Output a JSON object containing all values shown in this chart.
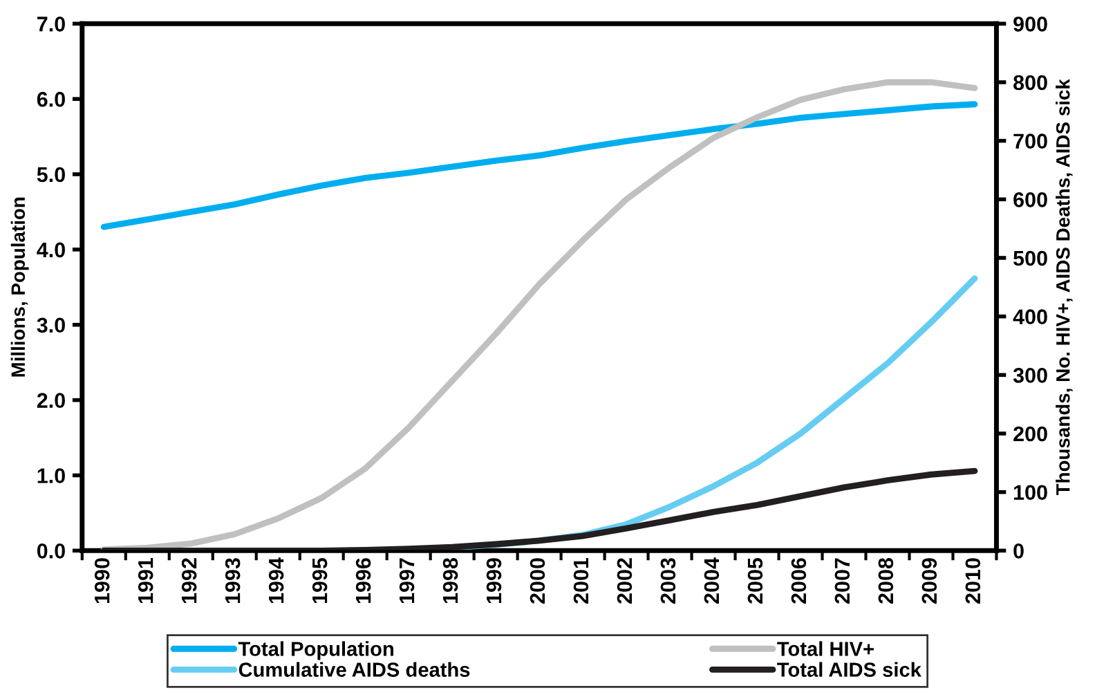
{
  "chart_data": {
    "type": "line",
    "ylabel": "Millions, Population",
    "y2label": "Thousands, No. HIV+, AIDS Deaths, AIDS sick",
    "categories": [
      "1990",
      "1991",
      "1992",
      "1993",
      "1994",
      "1995",
      "1996",
      "1997",
      "1998",
      "1999",
      "2000",
      "2001",
      "2002",
      "2003",
      "2004",
      "2005",
      "2006",
      "2007",
      "2008",
      "2009",
      "2010"
    ],
    "series": [
      {
        "name": "Total Population",
        "color": "#00aeef",
        "values": [
          4.3,
          4.4,
          4.5,
          4.6,
          4.73,
          4.85,
          4.95,
          5.02,
          5.1,
          5.18,
          5.25,
          5.35,
          5.44,
          5.52,
          5.6,
          5.67,
          5.75,
          5.8,
          5.85,
          5.9,
          5.93
        ]
      },
      {
        "name": "Total HIV+",
        "color": "#c0c0c0",
        "axis": "y2",
        "values": [
          2,
          5,
          12,
          28,
          55,
          90,
          140,
          210,
          290,
          370,
          455,
          530,
          600,
          655,
          705,
          740,
          770,
          788,
          800,
          800,
          790
        ]
      },
      {
        "name": "Cumulative AIDS deaths",
        "color": "#66ccf2",
        "axis": "y2",
        "values": [
          null,
          null,
          null,
          null,
          null,
          null,
          null,
          null,
          5,
          10,
          17,
          27,
          45,
          75,
          110,
          150,
          200,
          260,
          320,
          390,
          465
        ]
      },
      {
        "name": "Total AIDS sick",
        "color": "#231f20",
        "axis": "y2",
        "values": [
          0,
          0,
          0,
          0,
          0,
          0,
          1,
          3,
          6,
          11,
          17,
          25,
          38,
          52,
          66,
          78,
          93,
          108,
          120,
          130,
          136
        ]
      }
    ],
    "ylim": [
      0,
      7
    ],
    "yticks": [
      {
        "value": 0,
        "label": "0.0"
      },
      {
        "value": 1,
        "label": "1.0"
      },
      {
        "value": 2,
        "label": "2.0"
      },
      {
        "value": 3,
        "label": "3.0"
      },
      {
        "value": 4,
        "label": "4.0"
      },
      {
        "value": 5,
        "label": "5.0"
      },
      {
        "value": 6,
        "label": "6.0"
      },
      {
        "value": 7,
        "label": "7.0"
      }
    ],
    "y2lim": [
      0,
      900
    ],
    "y2ticks": [
      0,
      100,
      200,
      300,
      400,
      500,
      600,
      700,
      800,
      900
    ],
    "legend": "bottom",
    "grid": false,
    "line_style": "solid",
    "marker": "none"
  }
}
